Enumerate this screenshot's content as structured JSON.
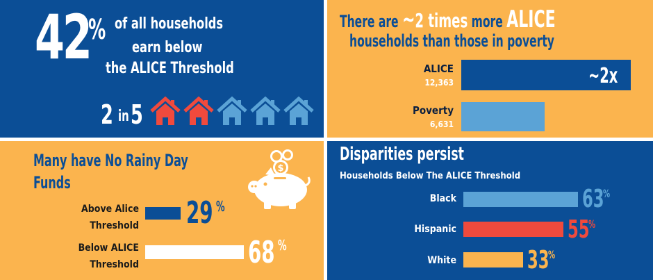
{
  "colors": {
    "navy": "#0b4e96",
    "yellow": "#fbb44e",
    "light_blue": "#5ba3d6",
    "red": "#f04a3d",
    "white": "#ffffff"
  },
  "households_panel": {
    "percent_value": "42",
    "percent_sign": "%",
    "line1": "of all households",
    "line2": "earn below",
    "line3": "the ALICE Threshold",
    "ratio_num": "2",
    "ratio_in": "in",
    "ratio_den": "5",
    "highlighted_houses": 2,
    "total_houses": 5
  },
  "alice_vs_poverty": {
    "title_pre": "There are ",
    "title_tilde": "~",
    "title_times": "2 times",
    "title_more": " more ",
    "title_alice": "ALICE",
    "title_line2": "households than those in poverty",
    "multiplier_label": "~2x"
  },
  "rainy_day": {
    "title_line1": "Many have No Rainy Day",
    "title_line2": "Funds",
    "piggy_icon": "piggy-bank-icon"
  },
  "disparities": {
    "title": "Disparities persist",
    "subtitle": "Households Below The ALICE Threshold"
  },
  "chart_data": [
    {
      "type": "bar",
      "orientation": "horizontal",
      "title": "There are ~2 times more ALICE households than those in poverty",
      "categories": [
        "ALICE",
        "Poverty"
      ],
      "values": [
        12363,
        6631
      ],
      "value_labels": [
        "12,363",
        "6,631"
      ],
      "xlim": [
        0,
        13000
      ],
      "grid": false
    },
    {
      "type": "bar",
      "orientation": "horizontal",
      "title": "Many have No Rainy Day Funds",
      "categories": [
        [
          "Above Alice",
          "Threshold"
        ],
        [
          "Below ALICE",
          "Threshold"
        ]
      ],
      "values": [
        29,
        68
      ],
      "value_labels": [
        "29",
        "68"
      ],
      "unit": "%",
      "xlim": [
        0,
        100
      ],
      "grid": false
    },
    {
      "type": "bar",
      "orientation": "horizontal",
      "title": "Disparities persist",
      "subtitle": "Households Below The ALICE Threshold",
      "categories": [
        "Black",
        "Hispanic",
        "White"
      ],
      "values": [
        63,
        55,
        33
      ],
      "value_labels": [
        "63",
        "55",
        "33"
      ],
      "unit": "%",
      "bar_colors": [
        "#5ba3d6",
        "#f04a3d",
        "#fbb44e"
      ],
      "xlim": [
        0,
        100
      ],
      "grid": false
    }
  ]
}
